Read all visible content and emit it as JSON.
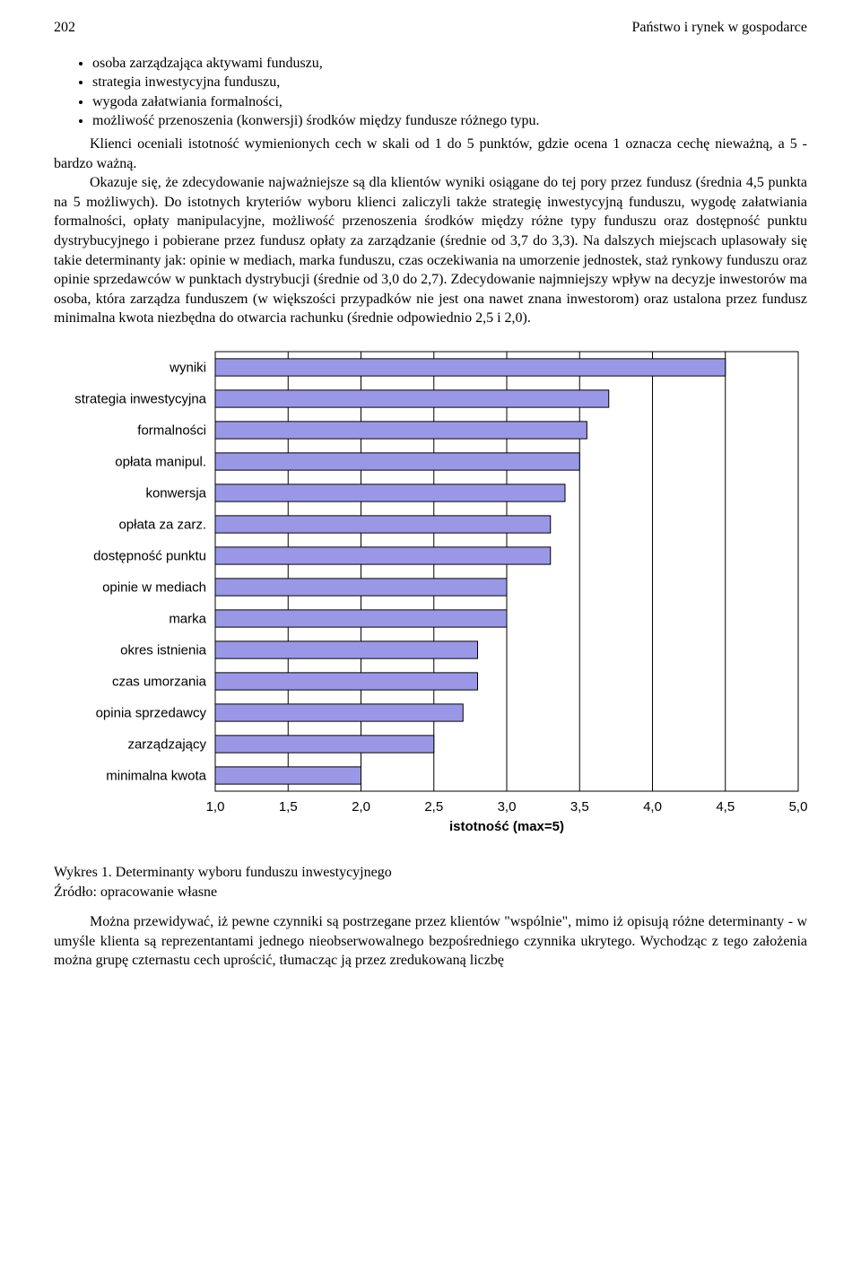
{
  "header": {
    "page_no": "202",
    "running_title": "Państwo i rynek w gospodarce"
  },
  "bullets": {
    "b1": "osoba zarządzająca aktywami funduszu,",
    "b2": "strategia inwestycyjna funduszu,",
    "b3": "wygoda załatwiania formalności,",
    "b4": "możliwość przenoszenia (konwersji) środków między fundusze różnego typu."
  },
  "para1a": "Klienci oceniali istotność wymienionych cech w skali od 1 do 5 punktów, gdzie ocena 1 oznacza cechę nieważną, a 5 - bardzo ważną.",
  "para1b": "Okazuje się, że zdecydowanie najważniejsze są dla klientów wyniki osiągane do tej pory przez fundusz (średnia 4,5 punkta na 5 możliwych). Do istotnych kryteriów wyboru klienci zaliczyli także strategię inwestycyjną funduszu, wygodę załatwiania formalności, opłaty manipulacyjne, możliwość przenoszenia środków między różne typy funduszu oraz dostępność punktu dystrybucyjnego i pobierane przez fundusz opłaty za zarządzanie (średnie od 3,7 do 3,3). Na dalszych miejscach uplasowały się takie determinanty jak: opinie w mediach, marka funduszu, czas oczekiwania na umorzenie jednostek, staż rynkowy funduszu oraz opinie sprzedawców w punktach dystrybucji (średnie od 3,0 do 2,7). Zdecydowanie najmniejszy wpływ na decyzje inwestorów ma osoba, która zarządza funduszem (w większości przypadków nie jest ona nawet znana inwestorom) oraz ustalona przez fundusz minimalna kwota niezbędna do otwarcia rachunku (średnie odpowiednio 2,5 i 2,0).",
  "chart": {
    "type": "bar-horizontal",
    "background_color": "#ffffff",
    "bar_color": "#9a98e6",
    "bar_border_color": "#000000",
    "grid_color": "#000000",
    "xlim": [
      1.0,
      5.0
    ],
    "xtick_step": 0.5,
    "xticks": [
      "1,0",
      "1,5",
      "2,0",
      "2,5",
      "3,0",
      "3,5",
      "4,0",
      "4,5",
      "5,0"
    ],
    "xlabel": "istotność (max=5)",
    "label_font_family": "Arial",
    "label_fontsize": 15,
    "xlabel_fontweight": "bold",
    "bar_height_ratio": 0.55,
    "categories": [
      {
        "label": "wyniki",
        "value": 4.5
      },
      {
        "label": "strategia inwestycyjna",
        "value": 3.7
      },
      {
        "label": "formalności",
        "value": 3.55
      },
      {
        "label": "opłata manipul.",
        "value": 3.5
      },
      {
        "label": "konwersja",
        "value": 3.4
      },
      {
        "label": "opłata za zarz.",
        "value": 3.3
      },
      {
        "label": "dostępność punktu",
        "value": 3.3
      },
      {
        "label": "opinie w mediach",
        "value": 3.0
      },
      {
        "label": "marka",
        "value": 3.0
      },
      {
        "label": "okres istnienia",
        "value": 2.8
      },
      {
        "label": "czas umorzania",
        "value": 2.8
      },
      {
        "label": "opinia sprzedawcy",
        "value": 2.7
      },
      {
        "label": "zarządzający",
        "value": 2.5
      },
      {
        "label": "minimalna kwota",
        "value": 2.0
      }
    ]
  },
  "caption": {
    "line1": "Wykres 1. Determinanty wyboru funduszu inwestycyjnego",
    "line2": "Źródło: opracowanie własne"
  },
  "para2": "Można przewidywać, iż pewne czynniki są postrzegane przez klientów \"wspólnie\", mimo iż opisują różne determinanty - w umyśle klienta są reprezentantami jednego nieobserwowalnego bezpośredniego czynnika ukrytego. Wychodząc z tego założenia można grupę czternastu cech uprościć, tłumacząc ją przez zredukowaną liczbę"
}
